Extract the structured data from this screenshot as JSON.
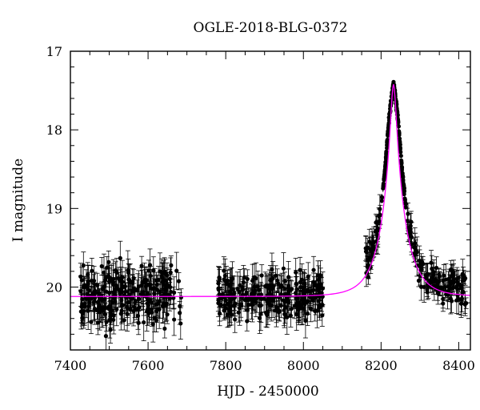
{
  "chart_data": {
    "type": "scatter",
    "title": "OGLE-2018-BLG-0372",
    "xlabel": "HJD - 2450000",
    "ylabel": "I magnitude",
    "xlim": [
      7400,
      8430
    ],
    "ylim": [
      20.8,
      17.0
    ],
    "y_inverted": true,
    "x_ticks": [
      7400,
      7600,
      7800,
      8000,
      8200,
      8400
    ],
    "x_tick_labels": [
      "7400",
      "7600",
      "7800",
      "8000",
      "8200",
      "8400"
    ],
    "y_ticks": [
      17,
      18,
      19,
      20
    ],
    "y_tick_labels": [
      "17",
      "18",
      "19",
      "20"
    ],
    "grid": false,
    "legend": "none",
    "series": [
      {
        "kind": "points-with-errorbars",
        "color": "#000000",
        "observing_seasons": [
          {
            "x_range": [
              7425,
              7690
            ],
            "mag_center": 20.1,
            "mag_spread": 0.25,
            "err_range": [
              0.1,
              0.25
            ]
          },
          {
            "x_range": [
              7780,
              8050
            ],
            "mag_center": 20.1,
            "mag_spread": 0.22,
            "err_range": [
              0.1,
              0.22
            ]
          },
          {
            "x_range": [
              8160,
              8420
            ],
            "mag_baseline": 20.1,
            "mag_spread": 0.15,
            "err_range": [
              0.05,
              0.2
            ]
          }
        ]
      },
      {
        "kind": "model-curve",
        "color": "#ff00ff",
        "baseline_mag": 20.12,
        "peak_time": 8232,
        "peak_mag": 17.42,
        "x": [
          7400,
          7600,
          7800,
          8000,
          8050,
          8100,
          8150,
          8175,
          8190,
          8200,
          8210,
          8220,
          8226,
          8232,
          8238,
          8244,
          8254,
          8264,
          8274,
          8289,
          8314,
          8339,
          8364,
          8389,
          8414,
          8430
        ],
        "y": [
          20.1,
          20.1,
          20.1,
          20.08,
          20.06,
          20.01,
          19.82,
          19.58,
          19.3,
          18.99,
          18.52,
          17.91,
          17.62,
          17.42,
          17.62,
          17.91,
          18.52,
          18.99,
          19.3,
          19.58,
          19.82,
          19.92,
          19.98,
          20.02,
          20.04,
          20.05
        ]
      }
    ]
  }
}
